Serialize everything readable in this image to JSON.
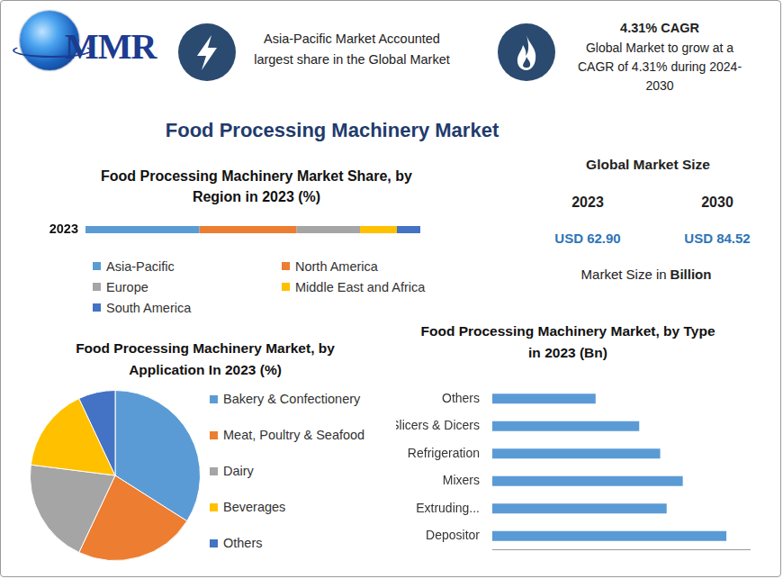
{
  "header": {
    "logo": "MMR",
    "highlights": [
      {
        "text": "Asia-Pacific Market Accounted largest share in the Global Market"
      },
      {
        "title": "4.31% CAGR",
        "text": "Global Market to grow at a CAGR of 4.31% during 2024-2030"
      }
    ]
  },
  "title": "Food Processing Machinery Market",
  "market_size": {
    "title": "Global Market Size",
    "items": [
      {
        "year": "2023",
        "value": "USD 62.90"
      },
      {
        "year": "2030",
        "value": "USD 84.52"
      }
    ],
    "label": "Market Size in",
    "unit": "Billion"
  },
  "chart_data": [
    {
      "type": "bar",
      "title": "Food Processing Machinery Market Share, by Region in 2023 (%)",
      "orientation": "horizontal",
      "stacked": true,
      "categories": [
        "2023"
      ],
      "series": [
        {
          "name": "Asia-Pacific",
          "color": "#5b9bd5",
          "values": [
            34
          ]
        },
        {
          "name": "North America",
          "color": "#ed7d31",
          "values": [
            29
          ]
        },
        {
          "name": "Europe",
          "color": "#a5a5a5",
          "values": [
            19
          ]
        },
        {
          "name": "Middle East and Africa",
          "color": "#ffc000",
          "values": [
            11
          ]
        },
        {
          "name": "South America",
          "color": "#4472c4",
          "values": [
            7
          ]
        }
      ],
      "xlim": [
        0,
        100
      ],
      "legend": "bottom",
      "tick_labels": "y",
      "grid": false
    },
    {
      "type": "pie",
      "title": "Food Processing Machinery Market, by Application In 2023 (%)",
      "categories": [
        "Bakery & Confectionery",
        "Meat, Poultry & Seafood",
        "Dairy",
        "Beverages",
        "Others"
      ],
      "values": [
        34,
        23,
        20,
        16,
        7
      ],
      "colors": [
        "#5b9bd5",
        "#ed7d31",
        "#a5a5a5",
        "#ffc000",
        "#4472c4"
      ],
      "legend": "right"
    },
    {
      "type": "bar",
      "title": "Food Processing Machinery Market, by Type in 2023 (Bn)",
      "orientation": "horizontal",
      "categories": [
        "Others",
        "Slicers & Dicers",
        "Refrigeration",
        "Mixers",
        "Extruding...",
        "Depositor"
      ],
      "values": [
        6.4,
        9.1,
        10.4,
        11.8,
        10.8,
        14.5
      ],
      "color": "#5b9bd5",
      "xlim": [
        0,
        16
      ],
      "tick_labels": "y",
      "grid": false
    }
  ]
}
